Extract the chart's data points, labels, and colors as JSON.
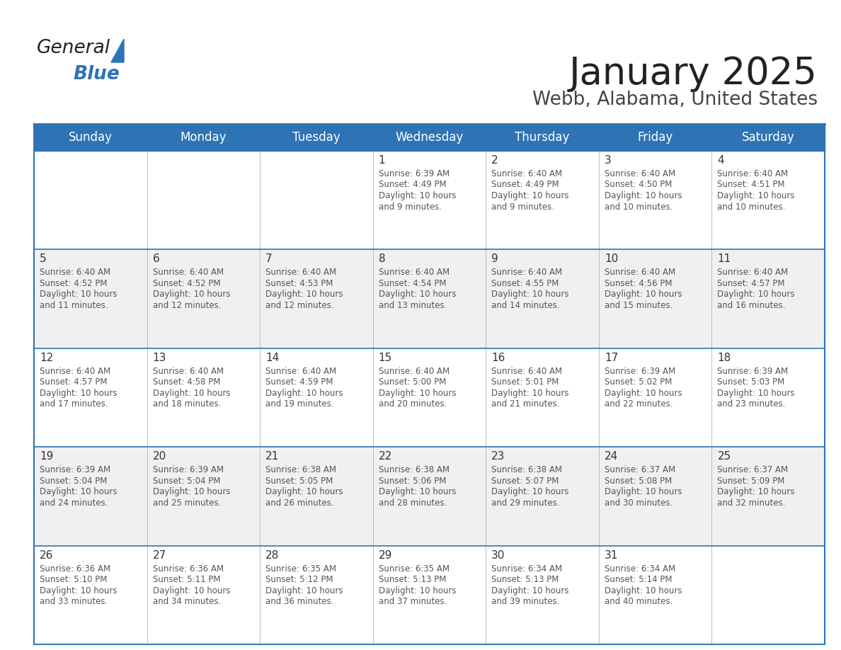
{
  "title": "January 2025",
  "subtitle": "Webb, Alabama, United States",
  "header_bg_color": "#2E74B5",
  "header_text_color": "#FFFFFF",
  "cell_bg_even": "#FFFFFF",
  "cell_bg_odd": "#F0F0F0",
  "cell_text_color": "#555555",
  "day_number_color": "#333333",
  "grid_line_color": "#2E74B5",
  "days_of_week": [
    "Sunday",
    "Monday",
    "Tuesday",
    "Wednesday",
    "Thursday",
    "Friday",
    "Saturday"
  ],
  "weeks": [
    [
      {
        "day": null
      },
      {
        "day": null
      },
      {
        "day": null
      },
      {
        "day": 1,
        "sunrise": "6:39 AM",
        "sunset": "4:49 PM",
        "daylight_h": "10 hours",
        "daylight_m": "and 9 minutes."
      },
      {
        "day": 2,
        "sunrise": "6:40 AM",
        "sunset": "4:49 PM",
        "daylight_h": "10 hours",
        "daylight_m": "and 9 minutes."
      },
      {
        "day": 3,
        "sunrise": "6:40 AM",
        "sunset": "4:50 PM",
        "daylight_h": "10 hours",
        "daylight_m": "and 10 minutes."
      },
      {
        "day": 4,
        "sunrise": "6:40 AM",
        "sunset": "4:51 PM",
        "daylight_h": "10 hours",
        "daylight_m": "and 10 minutes."
      }
    ],
    [
      {
        "day": 5,
        "sunrise": "6:40 AM",
        "sunset": "4:52 PM",
        "daylight_h": "10 hours",
        "daylight_m": "and 11 minutes."
      },
      {
        "day": 6,
        "sunrise": "6:40 AM",
        "sunset": "4:52 PM",
        "daylight_h": "10 hours",
        "daylight_m": "and 12 minutes."
      },
      {
        "day": 7,
        "sunrise": "6:40 AM",
        "sunset": "4:53 PM",
        "daylight_h": "10 hours",
        "daylight_m": "and 12 minutes."
      },
      {
        "day": 8,
        "sunrise": "6:40 AM",
        "sunset": "4:54 PM",
        "daylight_h": "10 hours",
        "daylight_m": "and 13 minutes."
      },
      {
        "day": 9,
        "sunrise": "6:40 AM",
        "sunset": "4:55 PM",
        "daylight_h": "10 hours",
        "daylight_m": "and 14 minutes."
      },
      {
        "day": 10,
        "sunrise": "6:40 AM",
        "sunset": "4:56 PM",
        "daylight_h": "10 hours",
        "daylight_m": "and 15 minutes."
      },
      {
        "day": 11,
        "sunrise": "6:40 AM",
        "sunset": "4:57 PM",
        "daylight_h": "10 hours",
        "daylight_m": "and 16 minutes."
      }
    ],
    [
      {
        "day": 12,
        "sunrise": "6:40 AM",
        "sunset": "4:57 PM",
        "daylight_h": "10 hours",
        "daylight_m": "and 17 minutes."
      },
      {
        "day": 13,
        "sunrise": "6:40 AM",
        "sunset": "4:58 PM",
        "daylight_h": "10 hours",
        "daylight_m": "and 18 minutes."
      },
      {
        "day": 14,
        "sunrise": "6:40 AM",
        "sunset": "4:59 PM",
        "daylight_h": "10 hours",
        "daylight_m": "and 19 minutes."
      },
      {
        "day": 15,
        "sunrise": "6:40 AM",
        "sunset": "5:00 PM",
        "daylight_h": "10 hours",
        "daylight_m": "and 20 minutes."
      },
      {
        "day": 16,
        "sunrise": "6:40 AM",
        "sunset": "5:01 PM",
        "daylight_h": "10 hours",
        "daylight_m": "and 21 minutes."
      },
      {
        "day": 17,
        "sunrise": "6:39 AM",
        "sunset": "5:02 PM",
        "daylight_h": "10 hours",
        "daylight_m": "and 22 minutes."
      },
      {
        "day": 18,
        "sunrise": "6:39 AM",
        "sunset": "5:03 PM",
        "daylight_h": "10 hours",
        "daylight_m": "and 23 minutes."
      }
    ],
    [
      {
        "day": 19,
        "sunrise": "6:39 AM",
        "sunset": "5:04 PM",
        "daylight_h": "10 hours",
        "daylight_m": "and 24 minutes."
      },
      {
        "day": 20,
        "sunrise": "6:39 AM",
        "sunset": "5:04 PM",
        "daylight_h": "10 hours",
        "daylight_m": "and 25 minutes."
      },
      {
        "day": 21,
        "sunrise": "6:38 AM",
        "sunset": "5:05 PM",
        "daylight_h": "10 hours",
        "daylight_m": "and 26 minutes."
      },
      {
        "day": 22,
        "sunrise": "6:38 AM",
        "sunset": "5:06 PM",
        "daylight_h": "10 hours",
        "daylight_m": "and 28 minutes."
      },
      {
        "day": 23,
        "sunrise": "6:38 AM",
        "sunset": "5:07 PM",
        "daylight_h": "10 hours",
        "daylight_m": "and 29 minutes."
      },
      {
        "day": 24,
        "sunrise": "6:37 AM",
        "sunset": "5:08 PM",
        "daylight_h": "10 hours",
        "daylight_m": "and 30 minutes."
      },
      {
        "day": 25,
        "sunrise": "6:37 AM",
        "sunset": "5:09 PM",
        "daylight_h": "10 hours",
        "daylight_m": "and 32 minutes."
      }
    ],
    [
      {
        "day": 26,
        "sunrise": "6:36 AM",
        "sunset": "5:10 PM",
        "daylight_h": "10 hours",
        "daylight_m": "and 33 minutes."
      },
      {
        "day": 27,
        "sunrise": "6:36 AM",
        "sunset": "5:11 PM",
        "daylight_h": "10 hours",
        "daylight_m": "and 34 minutes."
      },
      {
        "day": 28,
        "sunrise": "6:35 AM",
        "sunset": "5:12 PM",
        "daylight_h": "10 hours",
        "daylight_m": "and 36 minutes."
      },
      {
        "day": 29,
        "sunrise": "6:35 AM",
        "sunset": "5:13 PM",
        "daylight_h": "10 hours",
        "daylight_m": "and 37 minutes."
      },
      {
        "day": 30,
        "sunrise": "6:34 AM",
        "sunset": "5:13 PM",
        "daylight_h": "10 hours",
        "daylight_m": "and 39 minutes."
      },
      {
        "day": 31,
        "sunrise": "6:34 AM",
        "sunset": "5:14 PM",
        "daylight_h": "10 hours",
        "daylight_m": "and 40 minutes."
      },
      {
        "day": null
      }
    ]
  ],
  "logo_general_color": "#222222",
  "logo_blue_color": "#2E74B5",
  "title_color": "#222222",
  "subtitle_color": "#444444",
  "title_fontsize": 38,
  "subtitle_fontsize": 19,
  "header_fontsize": 12,
  "day_num_fontsize": 11,
  "cell_text_fontsize": 8.5
}
